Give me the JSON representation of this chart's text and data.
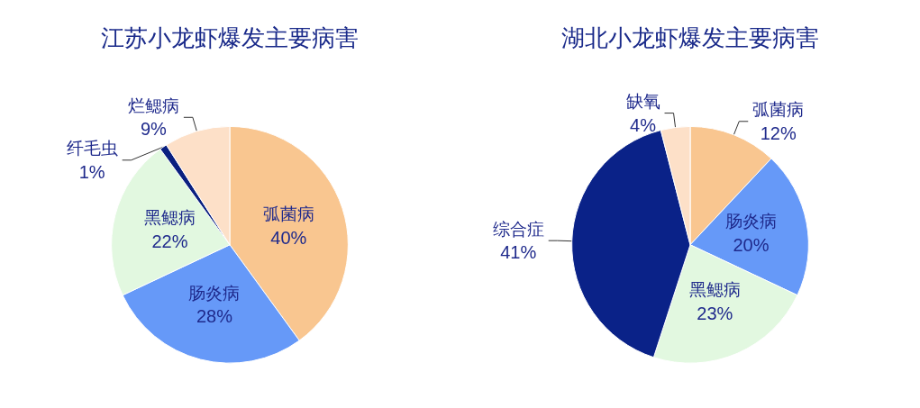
{
  "chart_data": [
    {
      "type": "pie",
      "title": "江苏小龙虾爆发主要病害",
      "categories": [
        "弧菌病",
        "肠炎病",
        "黑鳃病",
        "纤毛虫",
        "烂鳃病"
      ],
      "values": [
        40,
        28,
        22,
        1,
        9
      ],
      "value_labels": [
        "40%",
        "28%",
        "22%",
        "1%",
        "9%"
      ],
      "colors": [
        "#f9c690",
        "#6699f8",
        "#e2f8e0",
        "#0a2080",
        "#fde0c8"
      ],
      "legend": false
    },
    {
      "type": "pie",
      "title": "湖北小龙虾爆发主要病害",
      "categories": [
        "弧菌病",
        "肠炎病",
        "黑鳃病",
        "综合症",
        "缺氧"
      ],
      "values": [
        12,
        20,
        23,
        41,
        4
      ],
      "value_labels": [
        "12%",
        "20%",
        "23%",
        "41%",
        "4%"
      ],
      "colors": [
        "#f9c690",
        "#6699f8",
        "#e2f8e0",
        "#0a2288",
        "#fde0c8"
      ],
      "legend": false
    }
  ]
}
